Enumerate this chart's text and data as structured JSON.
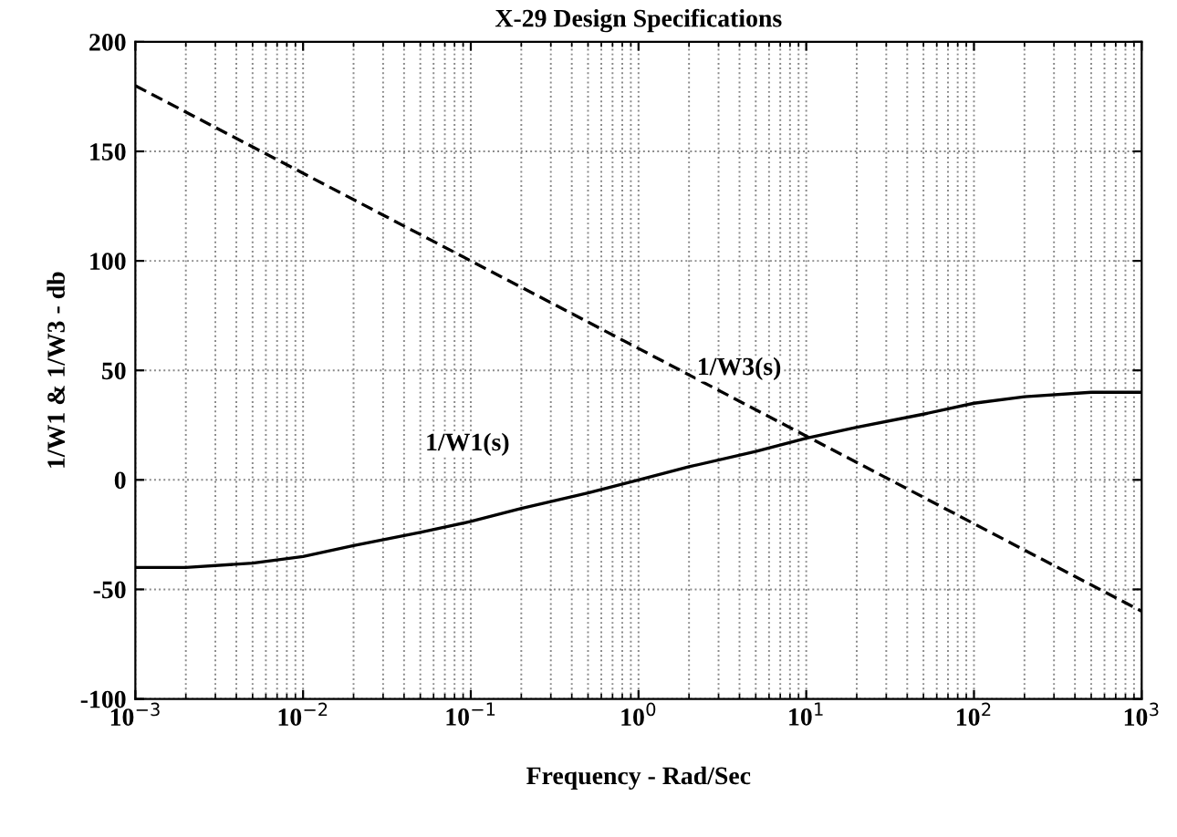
{
  "chart_data": {
    "type": "line",
    "title": "X-29 Design Specifications",
    "xlabel": "Frequency - Rad/Sec",
    "ylabel": "1/W1 & 1/W3 - db",
    "log": "x",
    "grid": true,
    "marker": "none",
    "xlim": [
      0.001,
      1000
    ],
    "xticks": [
      {
        "value": 0.001,
        "label": "10$^{−3}$"
      },
      {
        "value": 0.01,
        "label": "10$^{−2}$"
      },
      {
        "value": 0.1,
        "label": "10$^{−1}$"
      },
      {
        "value": 1,
        "label": "10$^{0}$"
      },
      {
        "value": 10,
        "label": "10$^{1}$"
      },
      {
        "value": 100,
        "label": "10$^{2}$"
      },
      {
        "value": 1000,
        "label": "10$^{3}$"
      }
    ],
    "ylim": [
      -100,
      200
    ],
    "yticks": [
      -100,
      -50,
      0,
      50,
      100,
      150,
      200
    ],
    "series": [
      {
        "name": "1/W1(s)",
        "color": "#000000",
        "line_style": "solid",
        "x": [
          0.001,
          0.002,
          0.005,
          0.01,
          0.02,
          0.05,
          0.1,
          0.2,
          0.5,
          1,
          2,
          5,
          10,
          20,
          50,
          100,
          200,
          500,
          1000
        ],
        "values": [
          -40,
          -40,
          -38,
          -35,
          -30,
          -24,
          -19,
          -13,
          -6,
          0,
          6,
          13,
          19,
          24,
          30,
          35,
          38,
          40,
          40
        ]
      },
      {
        "name": "1/W3(s)",
        "color": "#000000",
        "line_style": "dashed",
        "x": [
          0.001,
          1000
        ],
        "values": [
          180,
          -60
        ]
      }
    ]
  }
}
